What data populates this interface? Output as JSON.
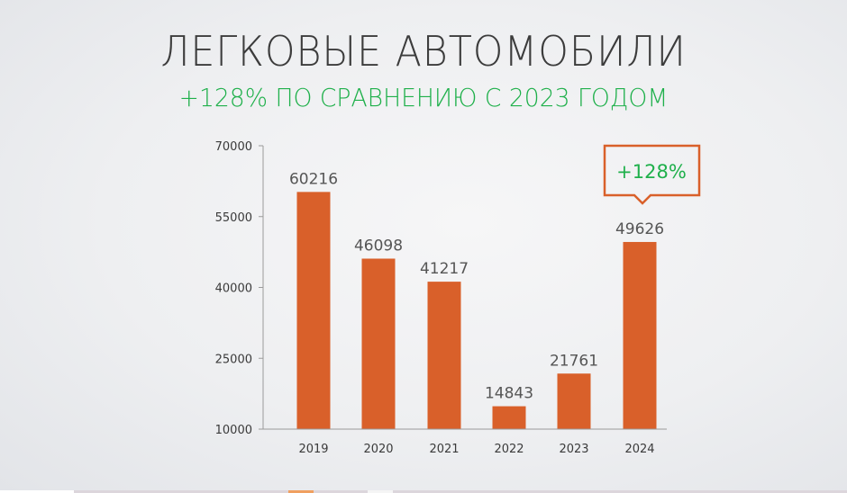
{
  "slide": {
    "title": "ЛЕГКОВЫЕ АВТОМОБИЛИ",
    "subtitle": "+128% ПО СРАВНЕНИЮ С 2023 ГОДОМ",
    "callout": "+128%",
    "colors": {
      "bar": "#d9602a",
      "accent_green": "#1fb04b",
      "callout_border": "#d9602a",
      "title": "#3c3c3c"
    }
  },
  "chart_data": {
    "type": "bar",
    "title": "ЛЕГКОВЫЕ АВТОМОБИЛИ",
    "subtitle": "+128% ПО СРАВНЕНИЮ С 2023 ГОДОМ",
    "categories": [
      "2019",
      "2020",
      "2021",
      "2022",
      "2023",
      "2024"
    ],
    "values": [
      60216,
      46098,
      41217,
      14843,
      21761,
      49626
    ],
    "data_labels": [
      "60216",
      "46098",
      "41217",
      "14843",
      "21761",
      "49626"
    ],
    "xlabel": "",
    "ylabel": "",
    "ylim": [
      10000,
      70000
    ],
    "yticks": [
      10000,
      25000,
      40000,
      55000,
      70000
    ],
    "ytick_labels": [
      "10000",
      "25000",
      "40000",
      "55000",
      "70000"
    ],
    "grid": false,
    "legend": null,
    "annotations": [
      {
        "category": "2024",
        "text": "+128%",
        "style": "callout"
      }
    ]
  }
}
